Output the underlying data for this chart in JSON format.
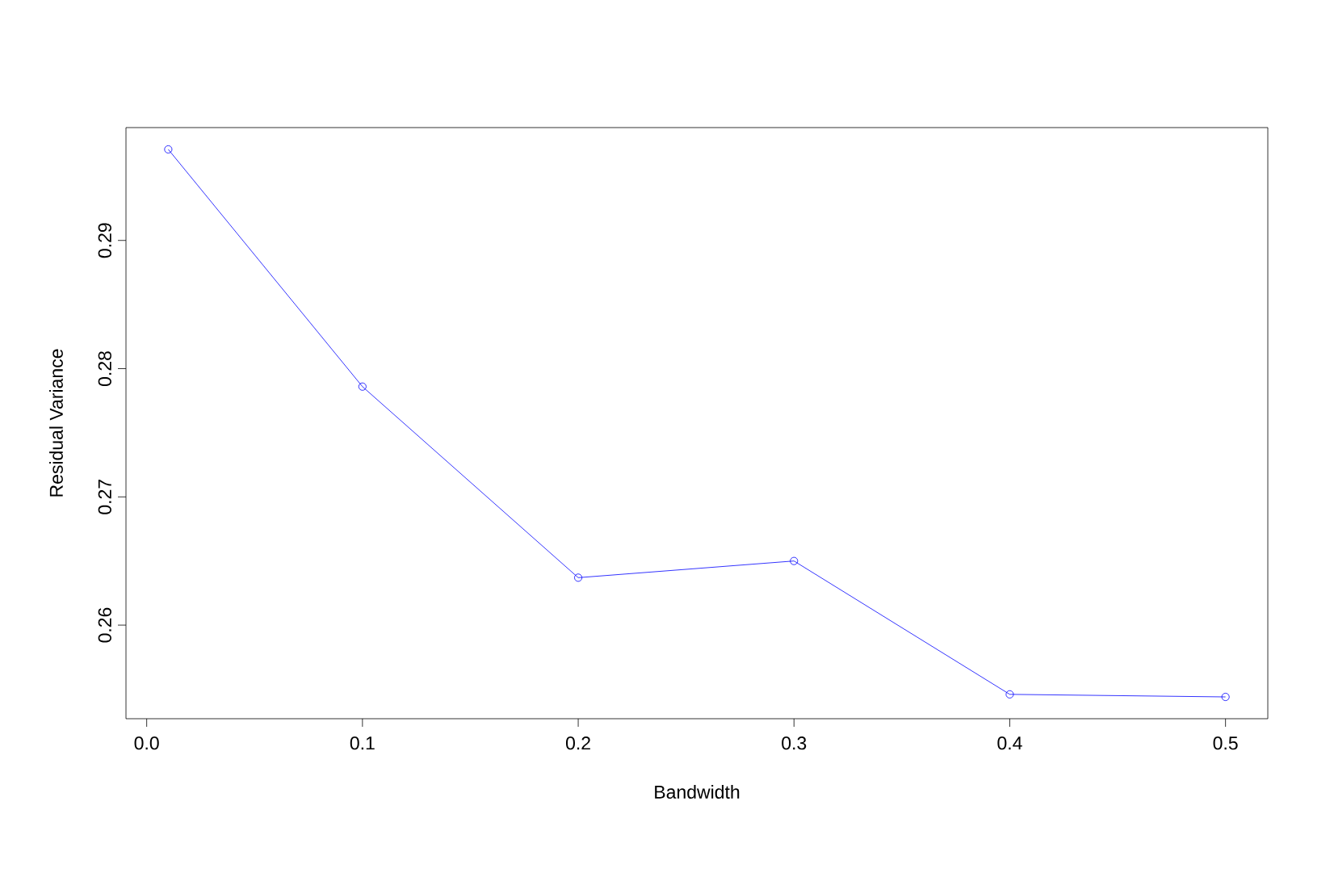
{
  "chart_data": {
    "type": "line",
    "xlabel": "Bandwidth",
    "ylabel": "Residual Variance",
    "x": [
      0.01,
      0.1,
      0.2,
      0.3,
      0.4,
      0.5
    ],
    "series": [
      {
        "color": "#0000ff",
        "values": [
          0.2971,
          0.2786,
          0.2637,
          0.265,
          0.2546,
          0.2544
        ]
      }
    ],
    "xlim": [
      -0.0096,
      0.5196
    ],
    "ylim": [
      0.2527,
      0.2988
    ],
    "xticks": [
      {
        "value": 0,
        "label": "0.0"
      },
      0.1,
      0.2,
      0.3,
      0.4,
      0.5
    ],
    "yticks": [
      0.26,
      0.27,
      0.28,
      0.29
    ],
    "marker": "circle",
    "line_style": "solid",
    "grid": false
  }
}
